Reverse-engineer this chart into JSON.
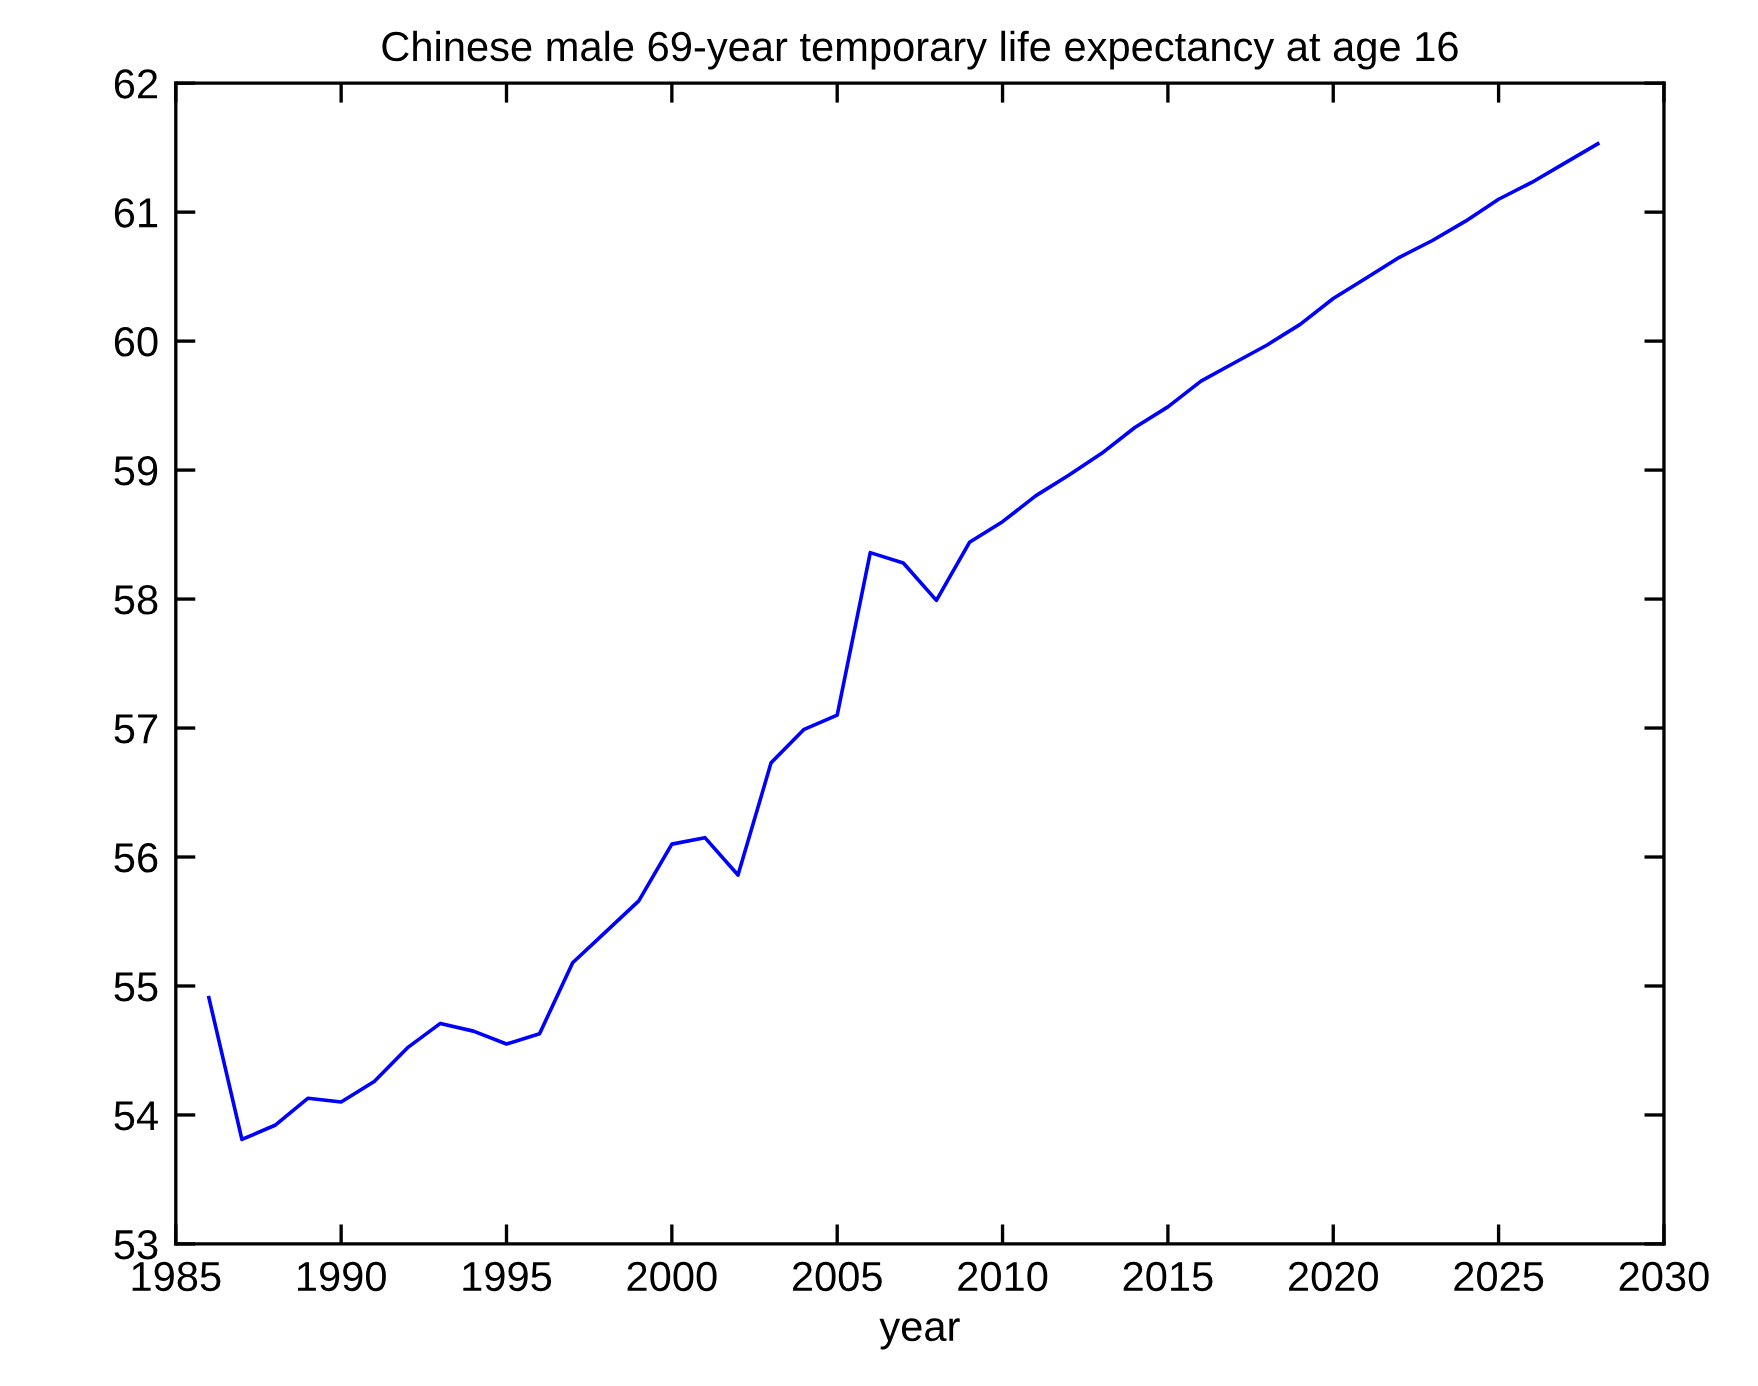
{
  "chart_data": {
    "type": "line",
    "title": "Chinese male 69-year temporary life expectancy at age 16",
    "xlabel": "year",
    "x": [
      1986,
      1987,
      1988,
      1989,
      1990,
      1991,
      1992,
      1993,
      1994,
      1995,
      1996,
      1997,
      1998,
      1999,
      2000,
      2001,
      2002,
      2003,
      2004,
      2005,
      2006,
      2007,
      2008,
      2009,
      2010,
      2011,
      2012,
      2013,
      2014,
      2015,
      2016,
      2017,
      2018,
      2019,
      2020,
      2021,
      2022,
      2023,
      2024,
      2025,
      2026,
      2027,
      2028
    ],
    "series": [
      {
        "color": "#0000ff",
        "values": [
          54.91,
          53.81,
          53.92,
          54.13,
          54.1,
          54.26,
          54.52,
          54.71,
          54.65,
          54.55,
          54.63,
          55.18,
          55.42,
          55.66,
          56.1,
          56.15,
          55.86,
          56.73,
          56.99,
          57.1,
          58.36,
          58.28,
          57.99,
          58.44,
          58.6,
          58.8,
          58.96,
          59.13,
          59.33,
          59.49,
          59.69,
          59.83,
          59.97,
          60.13,
          60.33,
          60.49,
          60.65,
          60.78,
          60.93,
          61.1,
          61.23,
          61.38,
          61.53
        ]
      }
    ],
    "xlim": [
      1985,
      2030
    ],
    "ylim": [
      53,
      62
    ],
    "xticks": [
      1985,
      1990,
      1995,
      2000,
      2005,
      2010,
      2015,
      2020,
      2025,
      2030
    ],
    "yticks": [
      53,
      54,
      55,
      56,
      57,
      58,
      59,
      60,
      61,
      62
    ],
    "line_style": "solid"
  }
}
